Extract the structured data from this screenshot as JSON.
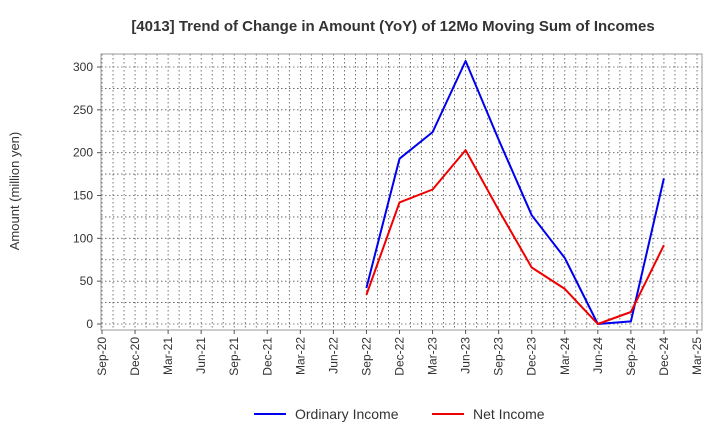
{
  "chart_data": {
    "type": "line",
    "title": "[4013]  Trend of Change in Amount (YoY) of 12Mo Moving Sum of Incomes",
    "xlabel": "",
    "ylabel": "Amount (million yen)",
    "x_ticks": [
      "Sep-20",
      "Dec-20",
      "Mar-21",
      "Jun-21",
      "Sep-21",
      "Dec-21",
      "Mar-22",
      "Jun-22",
      "Sep-22",
      "Dec-22",
      "Mar-23",
      "Jun-23",
      "Sep-23",
      "Dec-23",
      "Mar-24",
      "Jun-24",
      "Sep-24",
      "Dec-24",
      "Mar-25"
    ],
    "y_ticks": [
      0,
      50,
      100,
      150,
      200,
      250,
      300
    ],
    "ylim": [
      -5,
      317
    ],
    "grid": true,
    "legend_position": "bottom",
    "series": [
      {
        "name": "Ordinary Income",
        "color": "#0000ee",
        "x": [
          "Sep-22",
          "Dec-22",
          "Mar-23",
          "Jun-23",
          "Sep-23",
          "Dec-23",
          "Mar-24",
          "Jun-24",
          "Sep-24",
          "Dec-24"
        ],
        "values": [
          42,
          193,
          224,
          307,
          215,
          127,
          77,
          0,
          3,
          170
        ]
      },
      {
        "name": "Net Income",
        "color": "#ee0000",
        "x": [
          "Sep-22",
          "Dec-22",
          "Mar-23",
          "Jun-23",
          "Sep-23",
          "Dec-23",
          "Mar-24",
          "Jun-24",
          "Sep-24",
          "Dec-24"
        ],
        "values": [
          34,
          142,
          157,
          203,
          133,
          66,
          41,
          0,
          14,
          92
        ]
      }
    ]
  }
}
